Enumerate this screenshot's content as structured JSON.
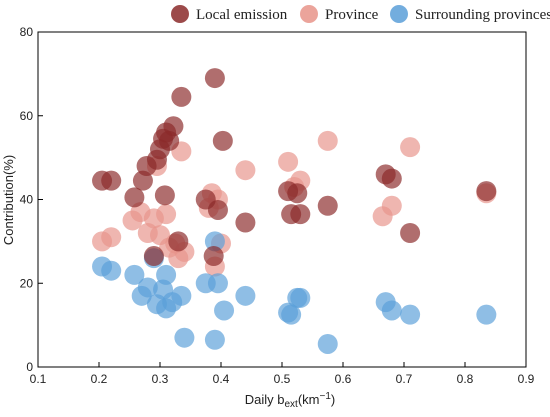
{
  "chart_data": {
    "type": "scatter",
    "xlabel": "Daily b",
    "xlabel_sub": "ext",
    "xlabel_unit": "(km",
    "xlabel_sup": "−1",
    "xlabel_close": ")",
    "ylabel": "Contribution(%)",
    "xlim": [
      0.1,
      0.9
    ],
    "ylim": [
      0,
      80
    ],
    "x_ticks": [
      0.1,
      0.2,
      0.3,
      0.4,
      0.5,
      0.6,
      0.7,
      0.8,
      0.9
    ],
    "x_tick_labels": [
      "0.1",
      "0.2",
      "0.3",
      "0.4",
      "0.5",
      "0.6",
      "0.7",
      "0.8",
      "0.9"
    ],
    "y_ticks": [
      0,
      20,
      40,
      60,
      80
    ],
    "y_tick_labels": [
      "0",
      "20",
      "40",
      "60",
      "80"
    ],
    "grid": false,
    "legend_position": "top",
    "series": [
      {
        "name": "Local emission",
        "color": "#8b2a2a",
        "points": [
          [
            0.205,
            44.5
          ],
          [
            0.22,
            44.5
          ],
          [
            0.258,
            40.5
          ],
          [
            0.272,
            44.5
          ],
          [
            0.278,
            48.0
          ],
          [
            0.295,
            49.5
          ],
          [
            0.3,
            52.0
          ],
          [
            0.305,
            54.5
          ],
          [
            0.31,
            56.0
          ],
          [
            0.315,
            54.0
          ],
          [
            0.308,
            41.0
          ],
          [
            0.322,
            57.5
          ],
          [
            0.335,
            64.5
          ],
          [
            0.39,
            69.0
          ],
          [
            0.403,
            54.0
          ],
          [
            0.375,
            40.0
          ],
          [
            0.395,
            37.5
          ],
          [
            0.44,
            34.5
          ],
          [
            0.33,
            30.0
          ],
          [
            0.388,
            26.5
          ],
          [
            0.29,
            26.5
          ],
          [
            0.51,
            42.0
          ],
          [
            0.515,
            36.5
          ],
          [
            0.525,
            41.5
          ],
          [
            0.53,
            36.5
          ],
          [
            0.575,
            38.5
          ],
          [
            0.67,
            46.0
          ],
          [
            0.68,
            45.0
          ],
          [
            0.71,
            32.0
          ],
          [
            0.835,
            42.0
          ]
        ]
      },
      {
        "name": "Province",
        "color": "#e8948a",
        "points": [
          [
            0.205,
            30.0
          ],
          [
            0.22,
            31.0
          ],
          [
            0.255,
            35.0
          ],
          [
            0.268,
            37.0
          ],
          [
            0.28,
            32.0
          ],
          [
            0.29,
            35.5
          ],
          [
            0.3,
            31.5
          ],
          [
            0.31,
            36.5
          ],
          [
            0.315,
            28.5
          ],
          [
            0.325,
            29.5
          ],
          [
            0.33,
            26.0
          ],
          [
            0.34,
            27.5
          ],
          [
            0.295,
            48.0
          ],
          [
            0.335,
            51.5
          ],
          [
            0.38,
            38.0
          ],
          [
            0.385,
            41.5
          ],
          [
            0.395,
            40.0
          ],
          [
            0.4,
            29.5
          ],
          [
            0.39,
            24.0
          ],
          [
            0.44,
            47.0
          ],
          [
            0.51,
            49.0
          ],
          [
            0.52,
            43.0
          ],
          [
            0.53,
            44.5
          ],
          [
            0.575,
            54.0
          ],
          [
            0.665,
            36.0
          ],
          [
            0.68,
            38.5
          ],
          [
            0.71,
            52.5
          ],
          [
            0.835,
            41.5
          ]
        ]
      },
      {
        "name": "Surrounding provinces",
        "color": "#5a9fd8",
        "points": [
          [
            0.205,
            24.0
          ],
          [
            0.22,
            23.0
          ],
          [
            0.258,
            22.0
          ],
          [
            0.27,
            17.0
          ],
          [
            0.28,
            19.0
          ],
          [
            0.29,
            26.0
          ],
          [
            0.295,
            15.0
          ],
          [
            0.305,
            18.5
          ],
          [
            0.31,
            22.0
          ],
          [
            0.31,
            14.0
          ],
          [
            0.32,
            15.5
          ],
          [
            0.335,
            17.0
          ],
          [
            0.34,
            7.0
          ],
          [
            0.375,
            20.0
          ],
          [
            0.39,
            30.0
          ],
          [
            0.395,
            20.0
          ],
          [
            0.39,
            6.5
          ],
          [
            0.405,
            13.5
          ],
          [
            0.44,
            17.0
          ],
          [
            0.51,
            13.0
          ],
          [
            0.515,
            12.5
          ],
          [
            0.525,
            16.5
          ],
          [
            0.53,
            16.5
          ],
          [
            0.575,
            5.5
          ],
          [
            0.67,
            15.5
          ],
          [
            0.68,
            13.5
          ],
          [
            0.71,
            12.5
          ],
          [
            0.835,
            12.5
          ]
        ]
      }
    ]
  }
}
